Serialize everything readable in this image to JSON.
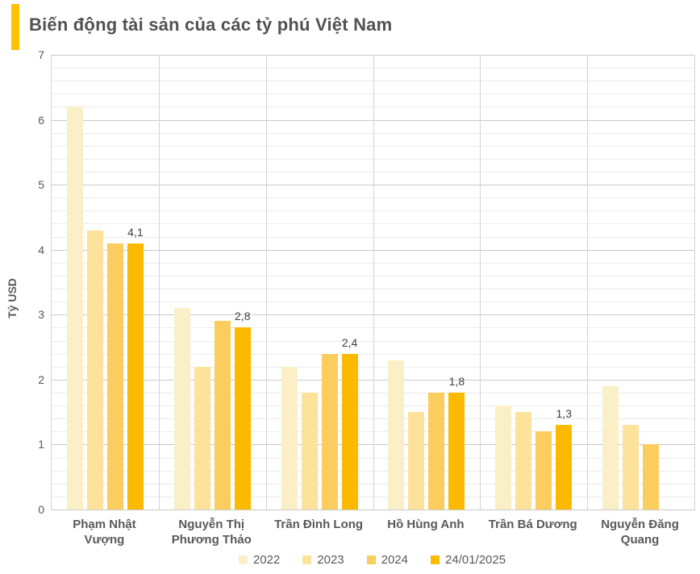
{
  "header": {
    "title": "Biến động tài sản của các tỷ phú Việt Nam",
    "accent_color": "#FFC000"
  },
  "chart_data": {
    "type": "bar",
    "title": "Biến động tài sản của các tỷ phú Việt Nam",
    "xlabel": "",
    "ylabel": "Tỷ USD",
    "ylim": [
      0,
      7
    ],
    "yticks": [
      "0",
      "1",
      "2",
      "3",
      "4",
      "5",
      "6",
      "7"
    ],
    "minor_grid_step": 0.2,
    "grid": true,
    "legend_position": "bottom",
    "categories": [
      "Phạm Nhật Vượng",
      "Nguyễn Thị Phương Thảo",
      "Trần Đình Long",
      "Hồ Hùng Anh",
      "Trần Bá Dương",
      "Nguyễn Đăng Quang"
    ],
    "series": [
      {
        "name": "2022",
        "color": "#FBEFC8",
        "values": [
          6.2,
          3.1,
          2.2,
          2.3,
          1.6,
          1.9
        ]
      },
      {
        "name": "2023",
        "color": "#FCE29B",
        "values": [
          4.3,
          2.2,
          1.8,
          1.5,
          1.5,
          1.3
        ]
      },
      {
        "name": "2024",
        "color": "#FACD5E",
        "values": [
          4.1,
          2.9,
          2.4,
          1.8,
          1.2,
          1.0
        ]
      },
      {
        "name": "24/01/2025",
        "color": "#FBBA00",
        "values": [
          4.1,
          2.8,
          2.4,
          1.8,
          1.3,
          null
        ]
      }
    ],
    "data_labels_on_series": "24/01/2025",
    "data_labels": [
      "4,1",
      "2,8",
      "2,4",
      "1,8",
      "1,3",
      null
    ]
  },
  "colors": {
    "grid_major": "#C9C9C9",
    "grid_minor": "#EBEBEB",
    "axis_text": "#595959",
    "data_label_text": "#3F3F3F"
  }
}
